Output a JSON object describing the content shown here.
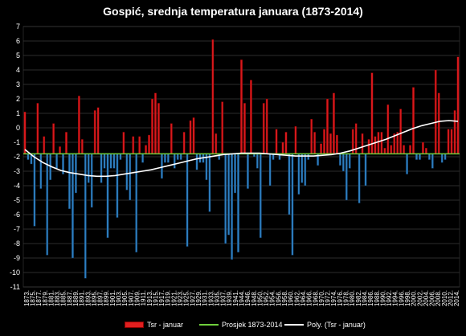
{
  "chart_data": {
    "type": "bar",
    "title": "Gospić, srednja temperatura januara (1873-2014)",
    "xlabel": "",
    "ylabel": "",
    "ylim": [
      -11,
      7
    ],
    "yticks": [
      7,
      6,
      5,
      4,
      3,
      2,
      1,
      0,
      -1,
      -2,
      -3,
      -4,
      -5,
      -6,
      -7,
      -8,
      -9,
      -10,
      -11
    ],
    "xtick_labels": [
      "1873.",
      "1875.",
      "1877.",
      "1879.",
      "1881.",
      "1883.",
      "1885.",
      "1887.",
      "1889.",
      "1891.",
      "1893.",
      "1895.",
      "1897.",
      "1899.",
      "1901.",
      "1903.",
      "1905.",
      "1907.",
      "1909.",
      "1911.",
      "1913.",
      "1915.",
      "1917.",
      "1919.",
      "1921.",
      "1923.",
      "1925.",
      "1927.",
      "1929.",
      "1931.",
      "1933.",
      "1935.",
      "1937.",
      "1939.",
      "1941.",
      "1944.",
      "1946.",
      "1948.",
      "1950.",
      "1952.",
      "1954.",
      "1956.",
      "1958.",
      "1960.",
      "1962.",
      "1964.",
      "1966.",
      "1968.",
      "1970.",
      "1972.",
      "1974.",
      "1976.",
      "1978.",
      "1980.",
      "1982.",
      "1984.",
      "1986.",
      "1988.",
      "1990.",
      "1992.",
      "1994.",
      "1996.",
      "1998.",
      "2000.",
      "2002.",
      "2004.",
      "2006.",
      "2008.",
      "2010.",
      "2012.",
      "2014."
    ],
    "baseline": -1.8,
    "series": [
      {
        "name": "Tsr - januar",
        "values": [
          1.1,
          -2.2,
          -2.5,
          -6.8,
          1.7,
          -4.2,
          -0.6,
          -8.8,
          -3.6,
          0.3,
          -2.8,
          -1.3,
          -3.2,
          -0.3,
          -5.6,
          -9.0,
          -4.5,
          2.2,
          -0.8,
          -10.4,
          -3.8,
          -5.5,
          1.2,
          1.4,
          -3.8,
          -2.8,
          -7.6,
          -2.8,
          -2.8,
          -6.2,
          -2.2,
          -0.3,
          -4.3,
          -5.0,
          -0.6,
          -8.6,
          -0.6,
          -2.4,
          -1.2,
          -0.5,
          2.0,
          2.4,
          1.7,
          -3.5,
          -2.4,
          -2.4,
          0.3,
          -2.8,
          -2.2,
          -2.2,
          -0.3,
          -8.2,
          0.5,
          0.7,
          -2.9,
          -2.4,
          -2.4,
          -3.6,
          -5.8,
          6.1,
          -0.4,
          -2.2,
          1.8,
          -8.0,
          -7.4,
          -9.1,
          -4.5,
          -8.6,
          4.7,
          1.7,
          -4.2,
          3.3,
          -2.0,
          -2.8,
          -7.6,
          1.7,
          2.0,
          -4.0,
          -2.2,
          -0.1,
          -2.2,
          -1.0,
          -0.3,
          -6.0,
          -8.8,
          0.1,
          -4.6,
          -3.8,
          -4.0,
          -2.2,
          0.6,
          -0.3,
          -2.6,
          -1.1,
          -0.1,
          2.0,
          -0.4,
          2.4,
          -0.5,
          -2.6,
          -3.0,
          -5.0,
          -2.8,
          -0.1,
          0.3,
          -5.2,
          -0.4,
          -4.0,
          -0.8,
          3.8,
          -0.6,
          -0.3,
          -0.3,
          -1.4,
          1.6,
          -1.2,
          -0.4,
          -0.3,
          1.3,
          -1.2,
          -3.2,
          -1.2,
          2.8,
          -2.2,
          -2.2,
          -1.0,
          -1.4,
          -2.2,
          -2.8,
          4.0,
          2.4,
          -2.4,
          -2.2,
          -0.1,
          -0.1,
          1.2,
          4.9
        ],
        "color": "#e01f1f"
      },
      {
        "name": "Prosjek 1873-2014",
        "value": -1.8,
        "color": "#6fcf3c"
      },
      {
        "name": "Poly. (Tsr - januar)",
        "color": "#ffffff",
        "values": [
          -1.5,
          -2.0,
          -2.4,
          -2.7,
          -2.95,
          -3.1,
          -3.2,
          -3.3,
          -3.35,
          -3.35,
          -3.3,
          -3.2,
          -3.1,
          -3.0,
          -2.9,
          -2.75,
          -2.6,
          -2.45,
          -2.3,
          -2.15,
          -2.05,
          -1.95,
          -1.85,
          -1.8,
          -1.75,
          -1.75,
          -1.75,
          -1.8,
          -1.85,
          -1.9,
          -1.95,
          -1.95,
          -1.95,
          -1.9,
          -1.85,
          -1.75,
          -1.6,
          -1.4,
          -1.2,
          -1.0,
          -0.8,
          -0.55,
          -0.3,
          -0.05,
          0.15,
          0.3,
          0.45,
          0.5,
          0.45
        ]
      }
    ],
    "legend": "bottom",
    "grid": true
  },
  "legend": {
    "item1": "Tsr - januar",
    "item2": "Prosjek 1873-2014",
    "item3": "Poly. (Tsr - januar)"
  }
}
